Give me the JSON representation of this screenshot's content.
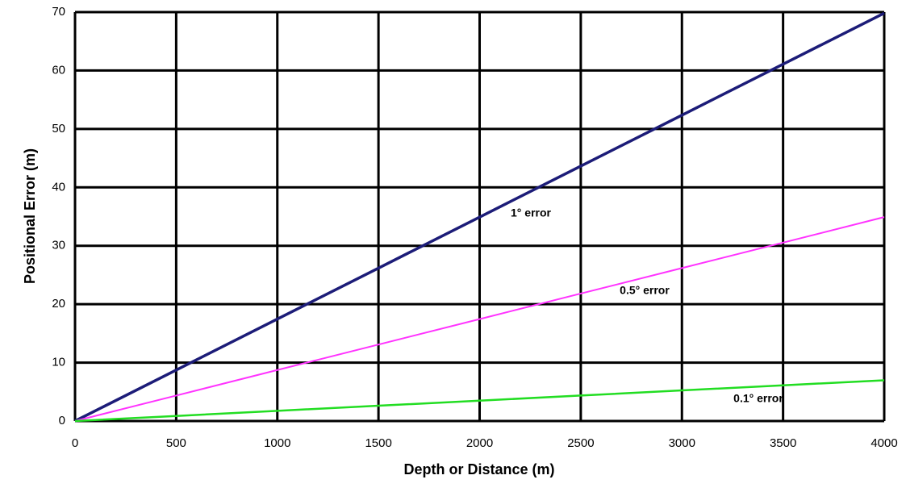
{
  "chart_data": {
    "type": "line",
    "x_label": "Depth or Distance (m)",
    "y_label": "Positional Error (m)",
    "x": [
      0,
      500,
      1000,
      1500,
      2000,
      2500,
      3000,
      3500,
      4000
    ],
    "series": [
      {
        "name": "1° error",
        "color": "#1c1c78",
        "values": [
          0,
          8.73,
          17.45,
          26.18,
          34.91,
          43.64,
          52.36,
          61.09,
          69.82
        ]
      },
      {
        "name": "0.5° error",
        "color": "#ff33ff",
        "values": [
          0,
          4.36,
          8.73,
          13.09,
          17.45,
          21.82,
          26.18,
          30.54,
          34.91
        ]
      },
      {
        "name": "0.1° error",
        "color": "#22dd22",
        "values": [
          0,
          0.87,
          1.75,
          2.62,
          3.49,
          4.36,
          5.24,
          6.11,
          6.98
        ]
      }
    ],
    "xlim": [
      0,
      4000
    ],
    "xticks": [
      0,
      500,
      1000,
      1500,
      2000,
      2500,
      3000,
      3500,
      4000
    ],
    "ylim": [
      0,
      70
    ],
    "yticks": [
      0,
      10,
      20,
      30,
      40,
      50,
      60,
      70
    ],
    "grid": true
  }
}
